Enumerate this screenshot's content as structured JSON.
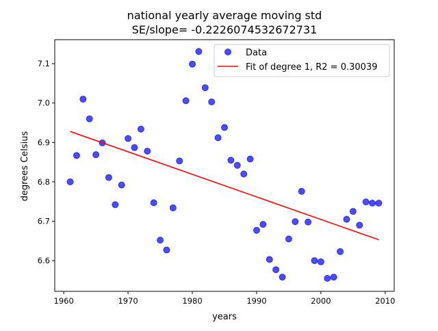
{
  "chart_data": {
    "type": "scatter",
    "title_line1": "national yearly average moving std",
    "title_line2": "SE/slope= -0.2226074532672731",
    "xlabel": "years",
    "ylabel": "degrees Celsius",
    "xlim": [
      1958.6,
      2011.4
    ],
    "ylim": [
      6.522,
      7.161
    ],
    "x_ticks": [
      1960,
      1970,
      1980,
      1990,
      2000,
      2010
    ],
    "y_ticks": [
      6.6,
      6.7,
      6.8,
      6.9,
      7.0,
      7.1
    ],
    "grid": false,
    "legend_position": "top-right",
    "legend": {
      "data_label": "Data",
      "fit_label": "Fit of degree 1, R2 = 0.30039"
    },
    "colors": {
      "points": "#0000ff",
      "fit": "#ff0000"
    },
    "series": [
      {
        "name": "Data",
        "x": [
          1961,
          1962,
          1963,
          1964,
          1965,
          1966,
          1967,
          1968,
          1969,
          1970,
          1971,
          1972,
          1973,
          1974,
          1975,
          1976,
          1977,
          1978,
          1979,
          1980,
          1981,
          1982,
          1983,
          1984,
          1985,
          1986,
          1987,
          1988,
          1989,
          1990,
          1991,
          1992,
          1993,
          1994,
          1995,
          1996,
          1997,
          1998,
          1999,
          2000,
          2001,
          2002,
          2003,
          2004,
          2005,
          2006,
          2007,
          2008,
          2009
        ],
        "y": [
          6.8,
          6.867,
          7.01,
          6.96,
          6.869,
          6.899,
          6.811,
          6.742,
          6.792,
          6.91,
          6.887,
          6.934,
          6.878,
          6.747,
          6.652,
          6.627,
          6.734,
          6.853,
          7.006,
          7.099,
          7.131,
          7.039,
          7.003,
          6.912,
          6.938,
          6.855,
          6.842,
          6.82,
          6.858,
          6.677,
          6.692,
          6.603,
          6.577,
          6.558,
          6.655,
          6.699,
          6.776,
          6.698,
          6.6,
          6.597,
          6.555,
          6.558,
          6.623,
          6.705,
          6.725,
          6.69,
          6.749,
          6.746,
          6.746
        ]
      }
    ],
    "fit": {
      "name": "Fit of degree 1, R2 = 0.30039",
      "x": [
        1961,
        2009
      ],
      "y": [
        6.928,
        6.653
      ]
    }
  }
}
